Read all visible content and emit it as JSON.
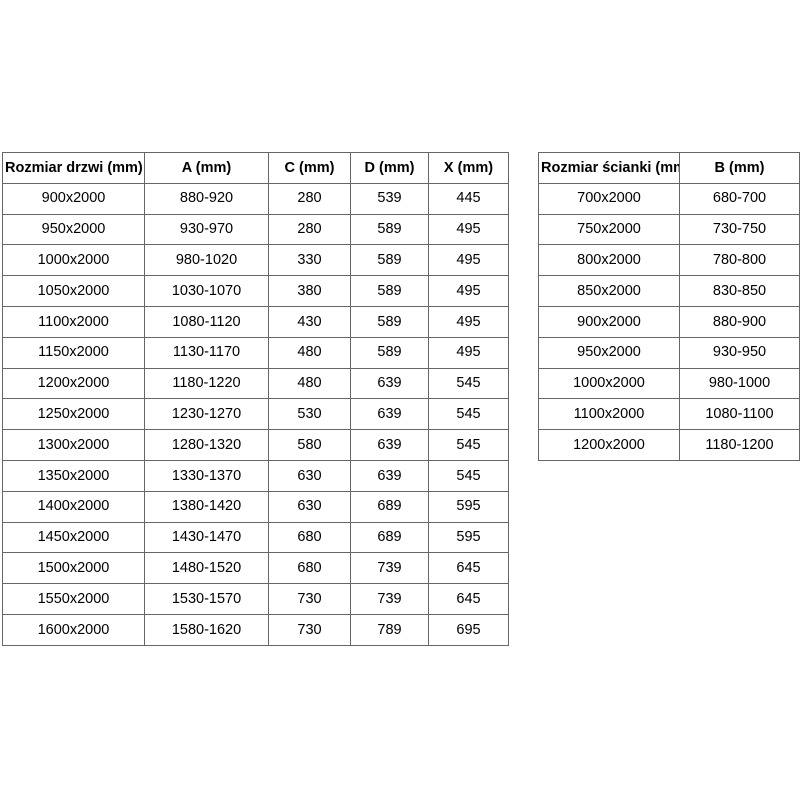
{
  "colors": {
    "background": "#ffffff",
    "outer_border": "#404040",
    "inner_border": "#666666",
    "text": "#000000"
  },
  "tables": {
    "doors": {
      "name": "door-sizes",
      "headers": [
        "Rozmiar drzwi (mm)",
        "A (mm)",
        "C (mm)",
        "D (mm)",
        "X (mm)"
      ],
      "rows": [
        [
          "900x2000",
          "880-920",
          "280",
          "539",
          "445"
        ],
        [
          "950x2000",
          "930-970",
          "280",
          "589",
          "495"
        ],
        [
          "1000x2000",
          "980-1020",
          "330",
          "589",
          "495"
        ],
        [
          "1050x2000",
          "1030-1070",
          "380",
          "589",
          "495"
        ],
        [
          "1100x2000",
          "1080-1120",
          "430",
          "589",
          "495"
        ],
        [
          "1150x2000",
          "1130-1170",
          "480",
          "589",
          "495"
        ],
        [
          "1200x2000",
          "1180-1220",
          "480",
          "639",
          "545"
        ],
        [
          "1250x2000",
          "1230-1270",
          "530",
          "639",
          "545"
        ],
        [
          "1300x2000",
          "1280-1320",
          "580",
          "639",
          "545"
        ],
        [
          "1350x2000",
          "1330-1370",
          "630",
          "639",
          "545"
        ],
        [
          "1400x2000",
          "1380-1420",
          "630",
          "689",
          "595"
        ],
        [
          "1450x2000",
          "1430-1470",
          "680",
          "689",
          "595"
        ],
        [
          "1500x2000",
          "1480-1520",
          "680",
          "739",
          "645"
        ],
        [
          "1550x2000",
          "1530-1570",
          "730",
          "739",
          "645"
        ],
        [
          "1600x2000",
          "1580-1620",
          "730",
          "789",
          "695"
        ]
      ]
    },
    "walls": {
      "name": "wall-panel-sizes",
      "headers": [
        "Rozmiar ścianki (mm)",
        "B (mm)"
      ],
      "rows": [
        [
          "700x2000",
          "680-700"
        ],
        [
          "750x2000",
          "730-750"
        ],
        [
          "800x2000",
          "780-800"
        ],
        [
          "850x2000",
          "830-850"
        ],
        [
          "900x2000",
          "880-900"
        ],
        [
          "950x2000",
          "930-950"
        ],
        [
          "1000x2000",
          "980-1000"
        ],
        [
          "1100x2000",
          "1080-1100"
        ],
        [
          "1200x2000",
          "1180-1200"
        ]
      ]
    }
  }
}
